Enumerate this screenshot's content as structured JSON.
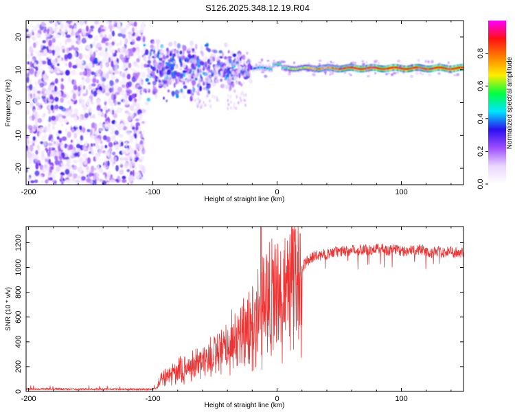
{
  "title": "S126.2025.348.12.19.R04",
  "chart_data": [
    {
      "type": "heatmap",
      "name": "spectrogram",
      "xlabel": "Height of straight line (km)",
      "ylabel": "Frequency (Hz)",
      "xlim": [
        -202,
        150
      ],
      "ylim": [
        -25,
        25
      ],
      "xticks": [
        -200,
        -100,
        0,
        100
      ],
      "xtick_labels": [
        "-200",
        "-100",
        "0",
        "100"
      ],
      "yticks": [
        -20,
        -10,
        0,
        10,
        20
      ],
      "ytick_labels": [
        "-20",
        "-10",
        "0",
        "10",
        "20"
      ],
      "colorbar": {
        "label": "Normalized spectral amplitude",
        "range": [
          0,
          1
        ],
        "ticks": [
          0.0,
          0.2,
          0.4,
          0.6,
          0.8
        ],
        "tick_labels": [
          "0.0",
          "0.2",
          "0.4",
          "0.6",
          "0.8"
        ],
        "colors": [
          "#ffffff",
          "#e9d6ff",
          "#9d4dff",
          "#2b10f0",
          "#00e5ff",
          "#00ff40",
          "#ffee00",
          "#ff8000",
          "#ff1010",
          "#ff00ff"
        ]
      },
      "regions": [
        {
          "name": "noise",
          "x_range": [
            -202,
            -107
          ],
          "freq_range": [
            -25,
            25
          ],
          "amplitude": 0.12
        },
        {
          "name": "emerging-carrier",
          "x_range": [
            -107,
            -20
          ],
          "freq_center": 10,
          "freq_spread": 6,
          "amplitude": 0.35
        },
        {
          "name": "carrier",
          "x_range": [
            -20,
            150
          ],
          "freq_center": 10.5,
          "freq_spread": 1,
          "amplitude": 0.9
        }
      ]
    },
    {
      "type": "line",
      "name": "snr",
      "xlabel": "Height of straight line (km)",
      "ylabel": "SNR (10 * v/v)",
      "xlim": [
        -202,
        150
      ],
      "ylim": [
        0,
        1330
      ],
      "xticks": [
        -200,
        -100,
        0,
        100
      ],
      "xtick_labels": [
        "-200",
        "-100",
        "0",
        "100"
      ],
      "yticks": [
        0,
        200,
        400,
        600,
        800,
        1000,
        1200
      ],
      "ytick_labels": [
        "0",
        "200",
        "400",
        "600",
        "800",
        "1000",
        "1200"
      ],
      "color": "#ee3333",
      "series": [
        {
          "name": "SNR",
          "x": [
            -202,
            -180,
            -160,
            -140,
            -120,
            -100,
            -97,
            -95,
            -90,
            -85,
            -80,
            -75,
            -70,
            -65,
            -60,
            -55,
            -50,
            -45,
            -40,
            -35,
            -30,
            -25,
            -20,
            -17,
            -15,
            -12,
            -10,
            -8,
            -5,
            -3,
            0,
            3,
            5,
            8,
            10,
            13,
            15,
            17,
            20,
            23,
            25,
            28,
            30,
            35,
            40,
            45,
            50,
            55,
            60,
            65,
            70,
            75,
            80,
            85,
            90,
            95,
            100,
            105,
            110,
            115,
            120,
            125,
            130,
            135,
            140,
            145,
            150
          ],
          "y": [
            20,
            20,
            18,
            18,
            18,
            18,
            25,
            80,
            120,
            150,
            170,
            190,
            210,
            240,
            260,
            280,
            300,
            320,
            380,
            420,
            480,
            500,
            560,
            650,
            700,
            740,
            800,
            820,
            830,
            850,
            760,
            820,
            880,
            920,
            950,
            900,
            860,
            960,
            1000,
            1040,
            1060,
            1080,
            1090,
            1100,
            1110,
            1120,
            1130,
            1130,
            1140,
            1140,
            1150,
            1140,
            1150,
            1150,
            1140,
            1150,
            1130,
            1140,
            1130,
            1150,
            1130,
            1120,
            1130,
            1120,
            1130,
            1120,
            1110
          ]
        }
      ]
    }
  ]
}
